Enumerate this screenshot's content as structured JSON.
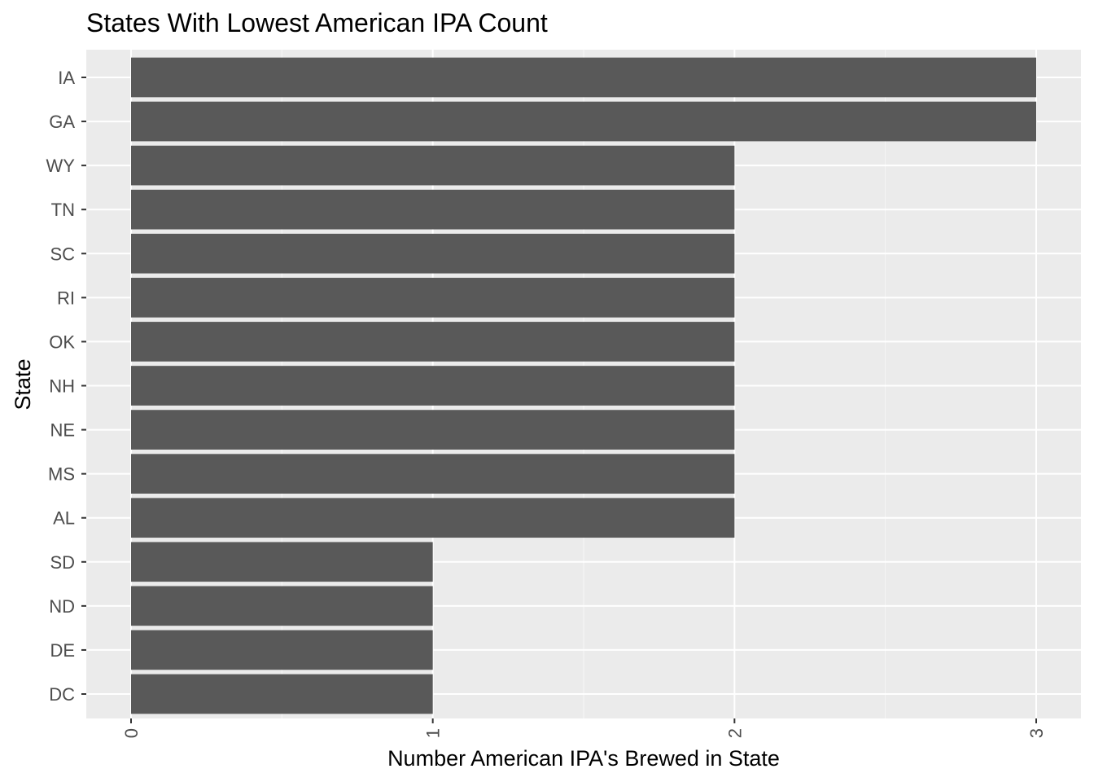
{
  "chart_data": {
    "type": "bar",
    "orientation": "horizontal",
    "title": "States With Lowest American IPA Count",
    "xlabel": "Number American IPA's Brewed in State",
    "ylabel": "State",
    "categories": [
      "IA",
      "GA",
      "WY",
      "TN",
      "SC",
      "RI",
      "OK",
      "NH",
      "NE",
      "MS",
      "AL",
      "SD",
      "ND",
      "DE",
      "DC"
    ],
    "values": [
      3,
      3,
      2,
      2,
      2,
      2,
      2,
      2,
      2,
      2,
      2,
      1,
      1,
      1,
      1
    ],
    "x_ticks": [
      "0",
      "1",
      "2",
      "3"
    ],
    "xlim": [
      0,
      3
    ],
    "x_tick_label_rotation": "vertical",
    "grid": true,
    "colors": {
      "bar": "#595959",
      "panel": "#ebebeb",
      "grid_major": "#ffffff",
      "grid_minor": "#f7f7f7",
      "tick_text": "#4d4d4d"
    }
  }
}
